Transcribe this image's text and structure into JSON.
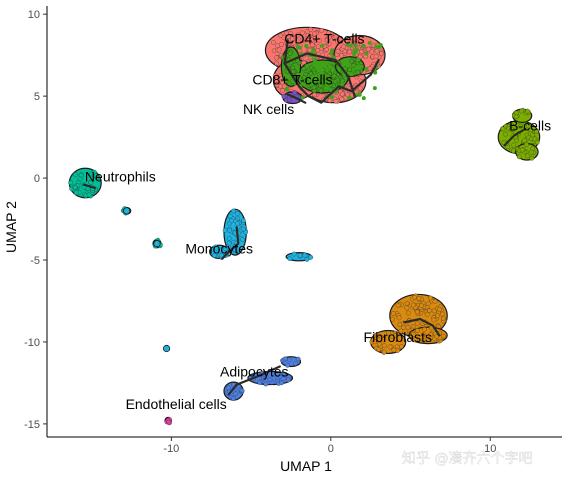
{
  "chart_data": {
    "type": "scatter",
    "title": "",
    "xlabel": "UMAP 1",
    "ylabel": "UMAP 2",
    "xlim": [
      -17.8,
      14.5
    ],
    "ylim": [
      -15.8,
      10.5
    ],
    "xticks": [
      -10,
      0,
      10
    ],
    "yticks": [
      10,
      5,
      0,
      -5,
      -10,
      -15
    ],
    "grid": false,
    "legend": "none",
    "clusters": [
      {
        "label": "CD4+ T-cells",
        "color": "#f8766d",
        "label_pos": [
          -0.4,
          8.2
        ],
        "blobs": [
          [
            -1.5,
            7.8,
            2.6,
            1.4
          ],
          [
            0.2,
            5.9,
            2.0,
            1.3
          ],
          [
            1.8,
            7.5,
            1.6,
            1.2
          ],
          [
            -2.2,
            6.0,
            1.4,
            1.2
          ]
        ]
      },
      {
        "label": "CD8+ T-cells",
        "color": "#3fa218",
        "label_pos": [
          -2.4,
          5.7
        ],
        "blobs": [
          [
            -0.5,
            6.2,
            1.6,
            1.0
          ],
          [
            -2.5,
            6.8,
            0.6,
            1.2
          ],
          [
            1.2,
            6.8,
            0.9,
            0.6
          ]
        ]
      },
      {
        "label": "NK cells",
        "color": "#7b52c1",
        "label_pos": [
          -3.9,
          3.9
        ],
        "blobs": [
          [
            -2.4,
            4.9,
            0.6,
            0.35
          ]
        ]
      },
      {
        "label": "B-cells",
        "color": "#7cae00",
        "label_pos": [
          12.5,
          2.9
        ],
        "blobs": [
          [
            11.8,
            2.5,
            1.3,
            1.0
          ],
          [
            12.0,
            3.8,
            0.6,
            0.4
          ],
          [
            12.3,
            1.6,
            0.7,
            0.5
          ]
        ]
      },
      {
        "label": "Neutrophils",
        "color": "#00bf99",
        "label_pos": [
          -13.2,
          -0.2
        ],
        "blobs": [
          [
            -15.4,
            -0.3,
            1.0,
            0.9
          ],
          [
            -12.8,
            -2.0,
            0.25,
            0.2
          ],
          [
            -10.9,
            -4.0,
            0.25,
            0.25
          ]
        ]
      },
      {
        "label": "Monocytes",
        "color": "#1fb2e0",
        "label_pos": [
          -7.0,
          -4.6
        ],
        "blobs": [
          [
            -6.0,
            -3.3,
            0.7,
            1.4
          ],
          [
            -7.0,
            -4.5,
            0.6,
            0.4
          ],
          [
            -2.0,
            -4.8,
            0.8,
            0.25
          ]
        ]
      },
      {
        "label": "Fibroblasts",
        "color": "#d98a11",
        "label_pos": [
          4.2,
          -10.0
        ],
        "blobs": [
          [
            5.5,
            -8.4,
            1.8,
            1.3
          ],
          [
            3.6,
            -10.0,
            1.1,
            0.7
          ],
          [
            6.1,
            -9.6,
            1.2,
            0.5
          ]
        ]
      },
      {
        "label": "Adipocytes",
        "color": "#4f7fe0",
        "label_pos": [
          -4.8,
          -12.1
        ],
        "blobs": [
          [
            -6.1,
            -13.0,
            0.6,
            0.55
          ],
          [
            -3.8,
            -12.2,
            1.4,
            0.4
          ],
          [
            -2.5,
            -11.2,
            0.6,
            0.3
          ]
        ]
      },
      {
        "label": "Endothelial cells",
        "color": "#e83ba3",
        "label_pos": [
          -9.7,
          -14.1
        ],
        "blobs": [
          [
            -10.2,
            -14.8,
            0.2,
            0.2
          ]
        ]
      }
    ],
    "stray_points": [
      [
        -10.3,
        -10.4
      ],
      [
        -12.8,
        -2.0
      ],
      [
        -10.9,
        -4.0
      ]
    ],
    "trajectories": [
      [
        [
          -2.7,
          8.4
        ],
        [
          -2.9,
          7.0
        ],
        [
          -2.0,
          5.6
        ],
        [
          -1.4,
          5.0
        ],
        [
          -0.6,
          4.6
        ],
        [
          0.5,
          5.6
        ],
        [
          1.3,
          5.3
        ],
        [
          2.5,
          6.3
        ],
        [
          3.0,
          7.2
        ]
      ],
      [
        [
          -2.9,
          7.0
        ],
        [
          -1.5,
          7.6
        ],
        [
          0.3,
          7.2
        ],
        [
          1.1,
          6.2
        ],
        [
          1.5,
          5.0
        ]
      ],
      [
        [
          -2.7,
          5.1
        ],
        [
          -2.2,
          4.9
        ],
        [
          -1.6,
          4.6
        ]
      ],
      [
        [
          10.9,
          2.0
        ],
        [
          11.5,
          2.6
        ],
        [
          12.2,
          3.0
        ]
      ],
      [
        [
          -15.5,
          -0.4
        ],
        [
          -14.8,
          -0.6
        ]
      ],
      [
        [
          -6.8,
          -4.9
        ],
        [
          -6.4,
          -4.5
        ],
        [
          -5.8,
          -4.0
        ],
        [
          -5.9,
          -3.0
        ]
      ],
      [
        [
          4.6,
          -8.8
        ],
        [
          5.6,
          -8.6
        ],
        [
          6.4,
          -9.0
        ],
        [
          6.8,
          -9.6
        ]
      ],
      [
        [
          -6.4,
          -13.2
        ],
        [
          -5.9,
          -12.6
        ],
        [
          -4.6,
          -12.1
        ],
        [
          -3.2,
          -11.5
        ]
      ]
    ]
  },
  "watermark": {
    "text": "知乎 @凑齐六个字吧"
  }
}
